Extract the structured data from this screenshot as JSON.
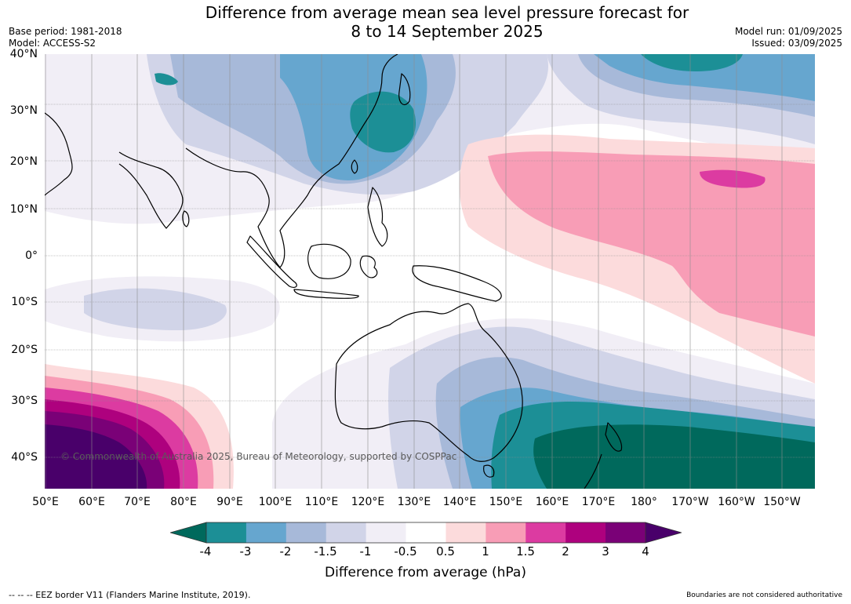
{
  "header": {
    "title_line1": "Difference from average mean sea level pressure forecast for",
    "title_line2": "8 to 14 September 2025",
    "base_period": "Base period: 1981-2018",
    "model": "Model: ACCESS-S2",
    "model_run": "Model run: 01/09/2025",
    "issued": "Issued: 03/09/2025"
  },
  "map": {
    "lat_labels": [
      "40°N",
      "30°N",
      "20°N",
      "10°N",
      "0°",
      "10°S",
      "20°S",
      "30°S",
      "40°S"
    ],
    "lon_labels": [
      "50°E",
      "60°E",
      "70°E",
      "80°E",
      "90°E",
      "100°E",
      "110°E",
      "120°E",
      "130°E",
      "140°E",
      "150°E",
      "160°E",
      "170°E",
      "180°",
      "170°W",
      "160°W",
      "150°W"
    ],
    "copyright": "© Commonwealth of Australia 2025, Bureau of Meteorology, supported by COSPPac",
    "colors": {
      "lt_neg4": "#00695c",
      "neg4_neg3": "#1c8f96",
      "neg3_neg2": "#66a6cf",
      "neg2_neg1_5": "#a7b9d9",
      "neg1_5_neg1": "#d1d4e8",
      "neg1_neg0_5": "#f1eef6",
      "neutral": "#ffffff",
      "p0_5_p1": "#fcdbdc",
      "p1_p1_5": "#f89db6",
      "p1_5_p2": "#dc3ba1",
      "p2_p3": "#ae017e",
      "p3_p4": "#7a0177",
      "gt_p4": "#49006a"
    }
  },
  "colorbar": {
    "ticks": [
      "-4",
      "-3",
      "-2",
      "-1.5",
      "-1",
      "-0.5",
      "0.5",
      "1",
      "1.5",
      "2",
      "3",
      "4"
    ],
    "colors": [
      "#1c8f96",
      "#66a6cf",
      "#a7b9d9",
      "#d1d4e8",
      "#f1eef6",
      "#ffffff",
      "#fcdbdc",
      "#f89db6",
      "#dc3ba1",
      "#ae017e",
      "#7a0177"
    ],
    "low_color": "#00695c",
    "high_color": "#49006a",
    "label": "Difference from average (hPa)"
  },
  "footer": {
    "eez_note": "--  --  -- EEZ border V11 (Flanders Marine Institute, 2019).",
    "boundaries_note": "Boundaries are not considered authoritative"
  }
}
